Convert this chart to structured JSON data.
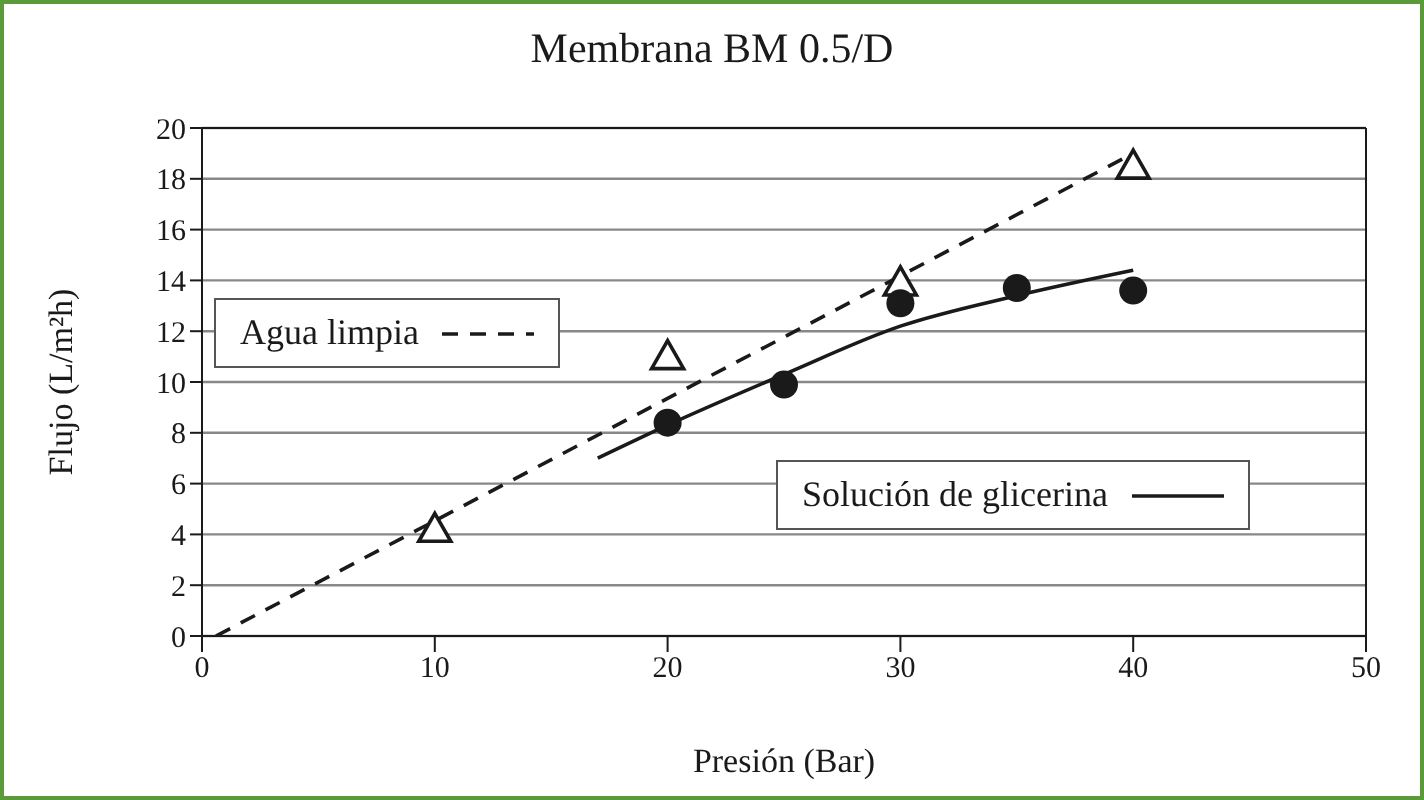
{
  "chart_data": {
    "type": "scatter",
    "title": "Membrana BM 0.5/D",
    "xlabel": "Presión (Bar)",
    "ylabel": "Flujo (L/m²h)",
    "xlim": [
      0,
      50
    ],
    "xticks": [
      0,
      10,
      20,
      30,
      40,
      50
    ],
    "ylim": [
      0,
      20
    ],
    "yticks": [
      0,
      2,
      4,
      6,
      8,
      10,
      12,
      14,
      16,
      18,
      20
    ],
    "grid": "y",
    "legend": "left",
    "series": [
      {
        "color": "#1a1a1a",
        "marker": "triangle",
        "x": [
          10,
          20,
          30,
          40
        ],
        "values": [
          4.2,
          11.0,
          13.9,
          18.5
        ]
      },
      {
        "color": "#1a1a1a",
        "marker": "circle",
        "x": [
          20,
          25,
          30,
          35,
          40
        ],
        "values": [
          8.4,
          9.9,
          13.1,
          13.7,
          13.6
        ]
      },
      {
        "type": "line",
        "name": "Agua limpia",
        "color": "#1a1a1a",
        "line_style": "dashed",
        "marker": "none",
        "x": [
          0.6,
          40
        ],
        "values": [
          0,
          19.0
        ]
      },
      {
        "type": "line",
        "name": "Solución de glicerina",
        "color": "#1a1a1a",
        "line_style": "solid",
        "marker": "none",
        "x": [
          17,
          20,
          25,
          30,
          35,
          40
        ],
        "values": [
          7.0,
          8.3,
          10.3,
          12.2,
          13.4,
          14.4
        ]
      }
    ]
  }
}
